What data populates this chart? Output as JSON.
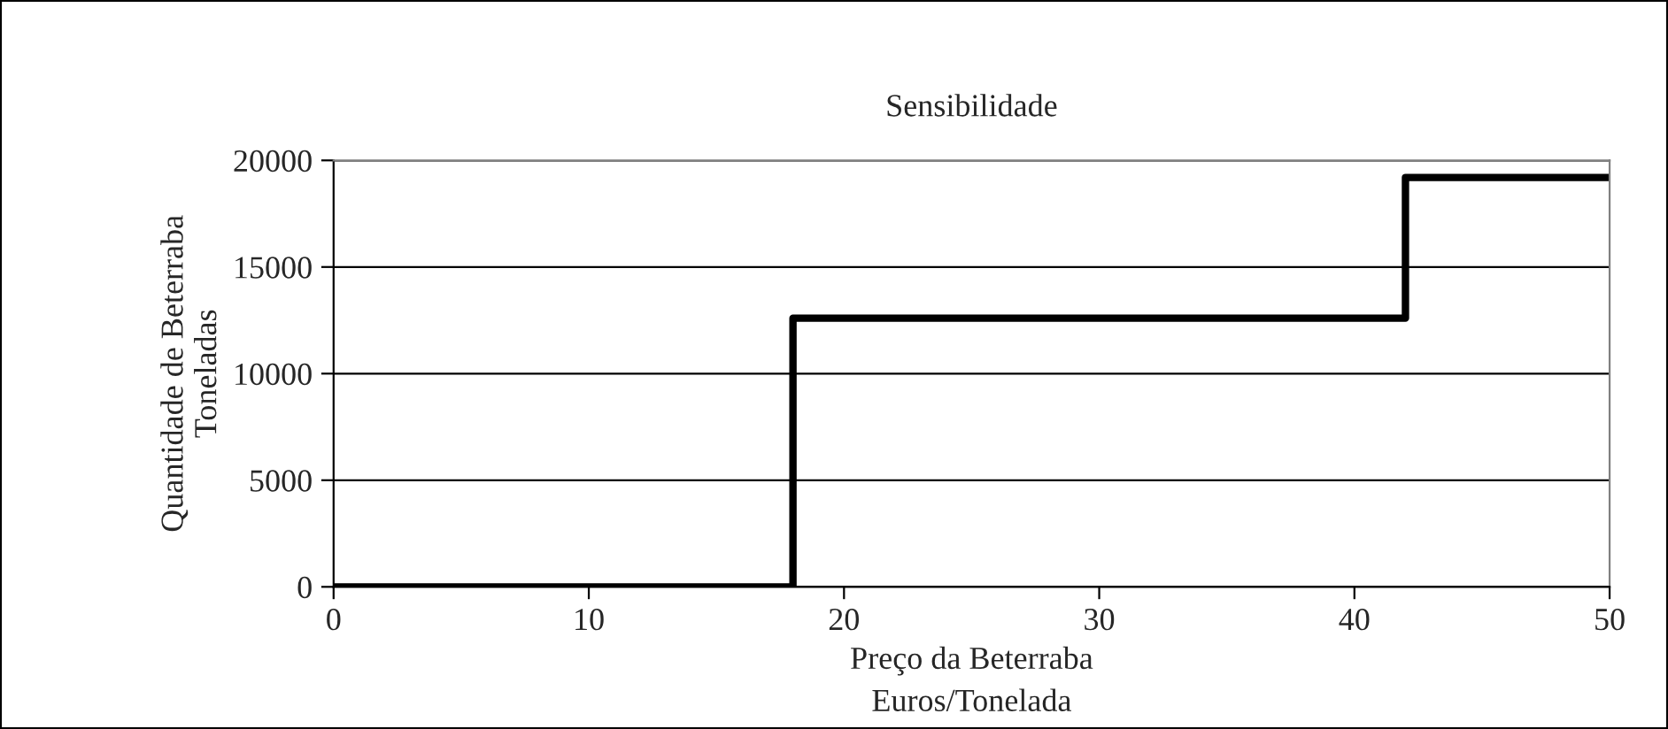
{
  "chart_data": {
    "type": "step",
    "title": "Sensibilidade",
    "xlabel": "Preço da Beterraba\nEuros/Tonelada",
    "ylabel": "Quantidade de Beterraba\nToneladas",
    "x": [
      0,
      18,
      42,
      50
    ],
    "series": [
      {
        "color": "#000000",
        "values": [
          0,
          12600,
          19200,
          19200
        ]
      }
    ],
    "xlim": [
      0,
      50
    ],
    "xticks": [
      0,
      10,
      20,
      30,
      40,
      50
    ],
    "ylim": [
      0,
      20000
    ],
    "yticks": [
      0,
      5000,
      10000,
      15000,
      20000
    ],
    "grid": "y",
    "legend": false,
    "marker": "none",
    "line_style": "solid"
  }
}
